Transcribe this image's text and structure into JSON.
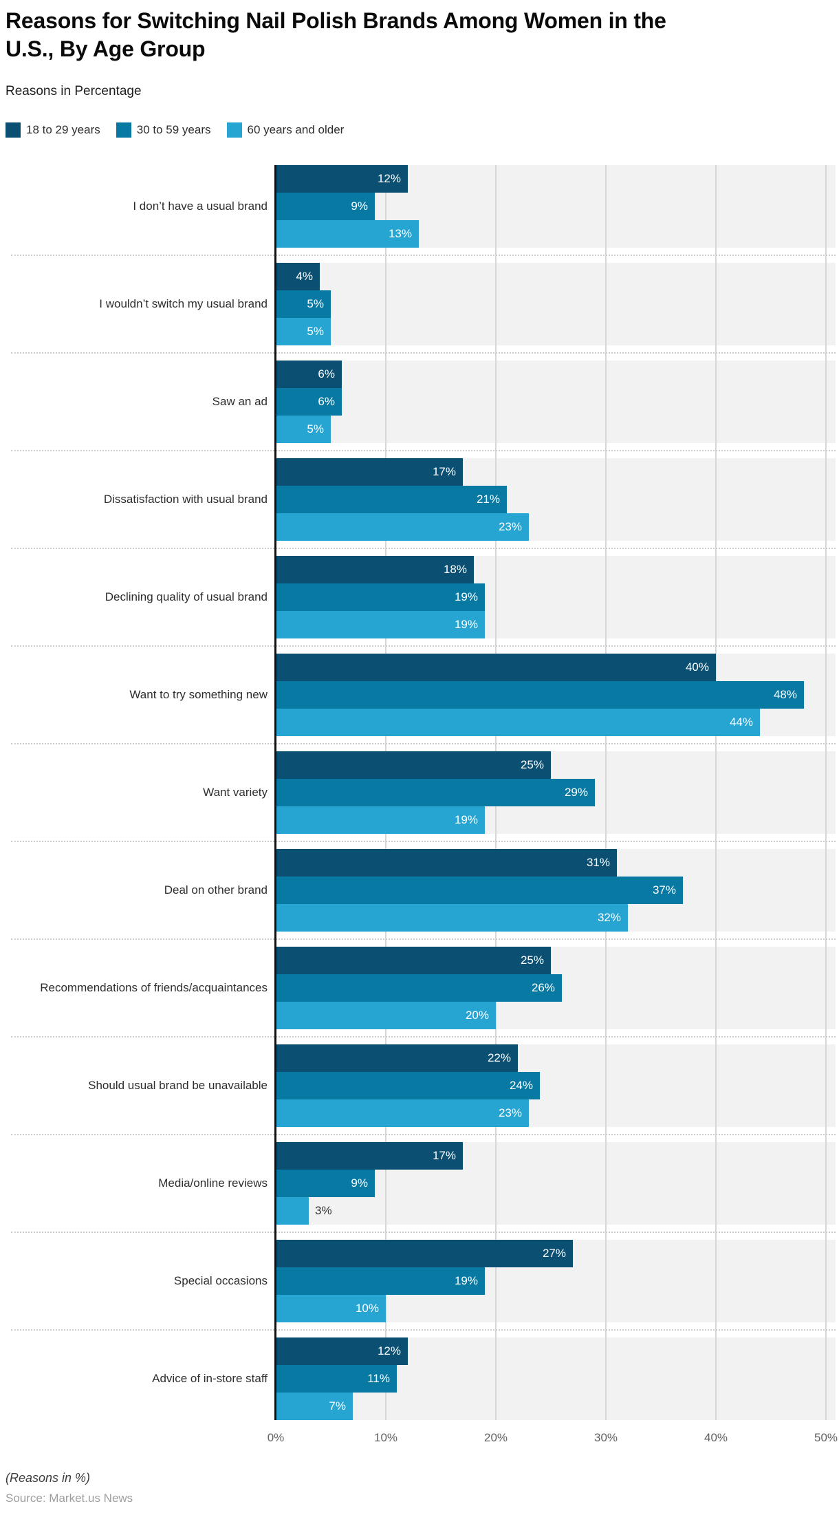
{
  "header": {
    "title": "Reasons for Switching Nail Polish Brands Among Women in the U.S., By Age Group",
    "subtitle": "Reasons in Percentage"
  },
  "legend": [
    {
      "label": "18 to 29 years",
      "color": "#0b4f72"
    },
    {
      "label": "30 to 59 years",
      "color": "#0779a2"
    },
    {
      "label": "60 years and older",
      "color": "#26a4d2"
    }
  ],
  "chart_data": {
    "type": "bar",
    "orientation": "horizontal",
    "title": "Reasons for Switching Nail Polish Brands Among Women in the U.S., By Age Group",
    "xlabel": "",
    "ylabel": "Reasons in Percentage",
    "xlim": [
      0,
      50
    ],
    "grid": true,
    "legend_position": "top",
    "value_suffix": "%",
    "x_ticks": [
      "0%",
      "10%",
      "20%",
      "30%",
      "40%",
      "50%"
    ],
    "categories": [
      "I don’t have a usual brand",
      "I wouldn’t switch my usual brand",
      "Saw an ad",
      "Dissatisfaction with usual brand",
      "Declining quality of usual brand",
      "Want to try something new",
      "Want variety",
      "Deal on other brand",
      "Recommendations of friends/acquaintances",
      "Should usual brand be unavailable",
      "Media/online reviews",
      "Special occasions",
      "Advice of in-store staff"
    ],
    "series": [
      {
        "name": "18 to 29 years",
        "color": "#0b4f72",
        "values": [
          12,
          4,
          6,
          17,
          18,
          40,
          25,
          31,
          25,
          22,
          17,
          27,
          12
        ]
      },
      {
        "name": "30 to 59 years",
        "color": "#0779a2",
        "values": [
          9,
          5,
          6,
          21,
          19,
          48,
          29,
          37,
          26,
          24,
          9,
          19,
          11
        ]
      },
      {
        "name": "60 years and older",
        "color": "#26a4d2",
        "values": [
          13,
          5,
          5,
          23,
          19,
          44,
          19,
          32,
          20,
          23,
          3,
          10,
          7
        ]
      }
    ]
  },
  "footer": {
    "note": "(Reasons in %)",
    "source": "Source: Market.us News"
  },
  "style": {
    "plot_background": "#f2f2f2",
    "gridline_color": "#d7d7d9",
    "axis_line_color": "#111111",
    "separator_color": "#cdcdcd",
    "value_label_color": "#ffffff"
  }
}
